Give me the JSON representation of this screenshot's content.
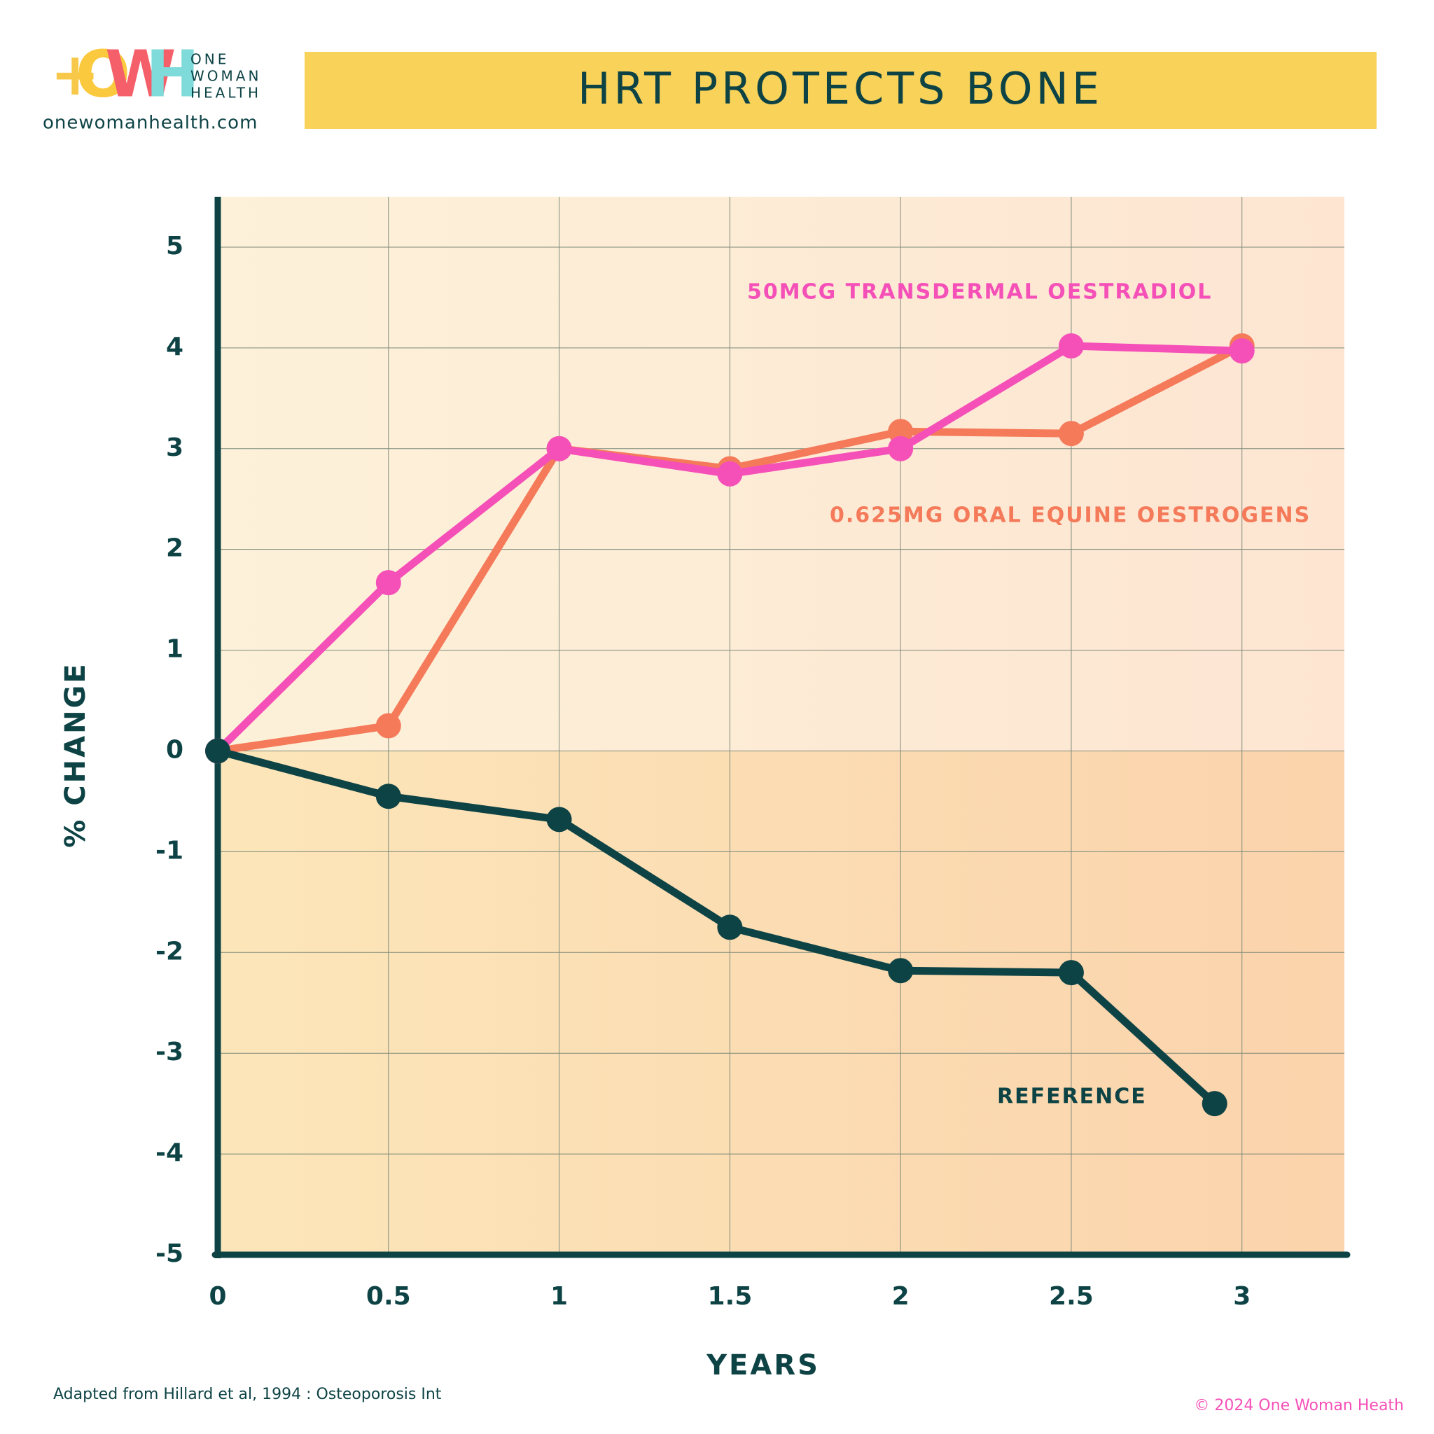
{
  "brand": {
    "mark": [
      "+",
      "O",
      "W",
      "H"
    ],
    "name": [
      "ONE",
      "WOMAN",
      "HEALTH"
    ],
    "url": "onewomanhealth.com"
  },
  "chart_data": {
    "type": "line",
    "title": "HRT PROTECTS BONE",
    "x_label": "YEARS",
    "y_label": "% CHANGE",
    "xlim": [
      0,
      3.3
    ],
    "xticks": [
      0,
      0.5,
      1,
      1.5,
      2,
      2.5,
      3
    ],
    "ylim": [
      -5,
      5.5
    ],
    "yticks": [
      -5,
      -4,
      -3,
      -2,
      -1,
      0,
      1,
      2,
      3,
      4,
      5
    ],
    "grid": true,
    "series": [
      {
        "name": "0.625MG ORAL EQUINE OESTROGENS",
        "color": "#f47a5a",
        "x": [
          0,
          0.5,
          1,
          1.5,
          2,
          2.5,
          3
        ],
        "values": [
          0,
          0.25,
          3,
          2.8,
          3.17,
          3.15,
          4.02
        ]
      },
      {
        "name": "50MCG TRANSDERMAL OESTRADIOL",
        "color": "#f550b8",
        "x": [
          0,
          0.5,
          1,
          1.5,
          2,
          2.5,
          3
        ],
        "values": [
          0,
          1.67,
          3,
          2.75,
          3,
          4.02,
          3.97
        ]
      },
      {
        "name": "REFERENCE",
        "color": "#0e4345",
        "x": [
          0,
          0.5,
          1,
          1.5,
          2,
          2.5,
          2.92
        ],
        "values": [
          0,
          -0.45,
          -0.68,
          -1.75,
          -2.18,
          -2.2,
          -3.5
        ]
      }
    ],
    "source": "Adapted from Hillard et al, 1994 : Osteoporosis Int",
    "copyright": "© 2024 One Woman Heath"
  }
}
